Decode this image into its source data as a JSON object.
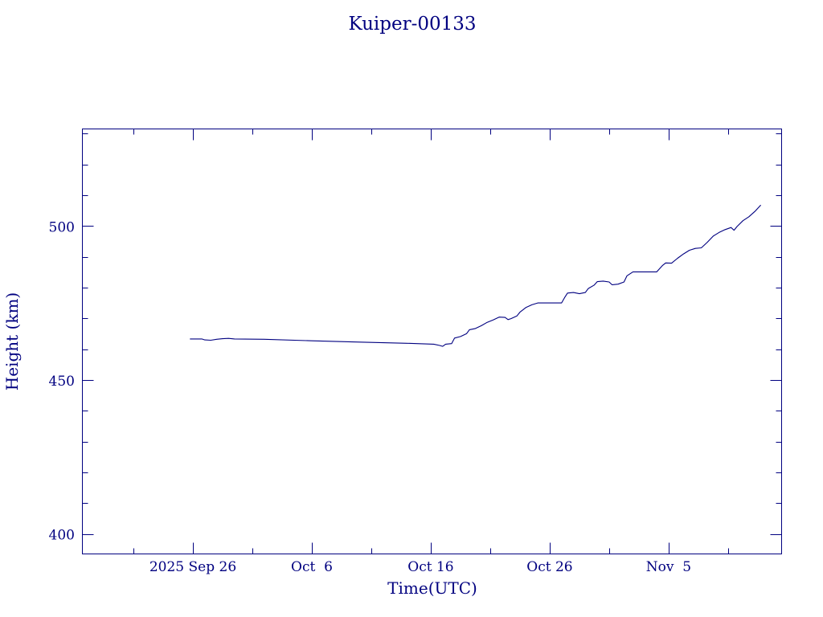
{
  "colors": {
    "ink": "#000080",
    "background": "#ffffff"
  },
  "chart_data": {
    "type": "line",
    "title": "Kuiper-00133",
    "xlabel": "Time(UTC)",
    "ylabel": "Height (km)",
    "grid": false,
    "x_range": [
      "2025-09-16T17:00",
      "2025-11-14T12:00"
    ],
    "ylim": [
      393.5,
      531.5
    ],
    "x_ticks": [
      {
        "label": "2025 Sep 26",
        "date": "2025-09-26"
      },
      {
        "label": "Oct  6",
        "date": "2025-10-06"
      },
      {
        "label": "Oct 16",
        "date": "2025-10-16"
      },
      {
        "label": "Oct 26",
        "date": "2025-10-26"
      },
      {
        "label": "Nov  5",
        "date": "2025-11-05"
      }
    ],
    "y_ticks": [
      400,
      450,
      500
    ],
    "series": [
      {
        "points": [
          [
            "2025-09-25T18:00",
            463.3
          ],
          [
            "2025-09-26T18:00",
            463.3
          ],
          [
            "2025-09-27T00:00",
            463.0
          ],
          [
            "2025-09-27T12:00",
            462.9
          ],
          [
            "2025-09-28T00:00",
            463.2
          ],
          [
            "2025-09-28T12:00",
            463.4
          ],
          [
            "2025-09-29T00:00",
            463.5
          ],
          [
            "2025-09-29T12:00",
            463.3
          ],
          [
            "2025-10-02T00:00",
            463.2
          ],
          [
            "2025-10-06T00:00",
            462.7
          ],
          [
            "2025-10-10T00:00",
            462.3
          ],
          [
            "2025-10-14T00:00",
            461.9
          ],
          [
            "2025-10-16T06:00",
            461.6
          ],
          [
            "2025-10-16T18:00",
            461.2
          ],
          [
            "2025-10-17T00:00",
            460.9
          ],
          [
            "2025-10-17T06:00",
            461.6
          ],
          [
            "2025-10-17T18:00",
            461.8
          ],
          [
            "2025-10-18T00:00",
            463.6
          ],
          [
            "2025-10-18T12:00",
            464.1
          ],
          [
            "2025-10-19T00:00",
            465.0
          ],
          [
            "2025-10-19T06:00",
            466.3
          ],
          [
            "2025-10-19T18:00",
            466.7
          ],
          [
            "2025-10-20T06:00",
            467.6
          ],
          [
            "2025-10-20T18:00",
            468.7
          ],
          [
            "2025-10-21T06:00",
            469.5
          ],
          [
            "2025-10-21T18:00",
            470.4
          ],
          [
            "2025-10-22T06:00",
            470.3
          ],
          [
            "2025-10-22T12:00",
            469.6
          ],
          [
            "2025-10-22T18:00",
            469.9
          ],
          [
            "2025-10-23T06:00",
            470.8
          ],
          [
            "2025-10-23T12:00",
            472.0
          ],
          [
            "2025-10-24T00:00",
            473.5
          ],
          [
            "2025-10-24T12:00",
            474.4
          ],
          [
            "2025-10-25T00:00",
            475.0
          ],
          [
            "2025-10-26T12:00",
            475.0
          ],
          [
            "2025-10-27T00:00",
            475.0
          ],
          [
            "2025-10-27T06:00",
            476.7
          ],
          [
            "2025-10-27T12:00",
            478.2
          ],
          [
            "2025-10-28T00:00",
            478.4
          ],
          [
            "2025-10-28T12:00",
            478.0
          ],
          [
            "2025-10-29T00:00",
            478.4
          ],
          [
            "2025-10-29T06:00",
            479.7
          ],
          [
            "2025-10-29T18:00",
            480.8
          ],
          [
            "2025-10-30T00:00",
            481.9
          ],
          [
            "2025-10-30T12:00",
            482.1
          ],
          [
            "2025-10-31T00:00",
            481.8
          ],
          [
            "2025-10-31T06:00",
            480.9
          ],
          [
            "2025-10-31T18:00",
            481.1
          ],
          [
            "2025-11-01T06:00",
            481.8
          ],
          [
            "2025-11-01T12:00",
            483.8
          ],
          [
            "2025-11-02T00:00",
            485.1
          ],
          [
            "2025-11-03T06:00",
            485.1
          ],
          [
            "2025-11-04T00:00",
            485.1
          ],
          [
            "2025-11-04T12:00",
            487.2
          ],
          [
            "2025-11-04T18:00",
            488.0
          ],
          [
            "2025-11-05T06:00",
            487.9
          ],
          [
            "2025-11-05T18:00",
            489.5
          ],
          [
            "2025-11-06T06:00",
            490.9
          ],
          [
            "2025-11-06T18:00",
            492.1
          ],
          [
            "2025-11-07T06:00",
            492.7
          ],
          [
            "2025-11-07T18:00",
            492.9
          ],
          [
            "2025-11-08T06:00",
            494.7
          ],
          [
            "2025-11-08T18:00",
            496.7
          ],
          [
            "2025-11-09T06:00",
            497.9
          ],
          [
            "2025-11-09T18:00",
            498.8
          ],
          [
            "2025-11-10T06:00",
            499.5
          ],
          [
            "2025-11-10T12:00",
            498.6
          ],
          [
            "2025-11-10T18:00",
            499.8
          ],
          [
            "2025-11-11T06:00",
            501.7
          ],
          [
            "2025-11-11T18:00",
            503.0
          ],
          [
            "2025-11-12T06:00",
            504.7
          ],
          [
            "2025-11-12T18:00",
            506.8
          ]
        ]
      }
    ]
  }
}
